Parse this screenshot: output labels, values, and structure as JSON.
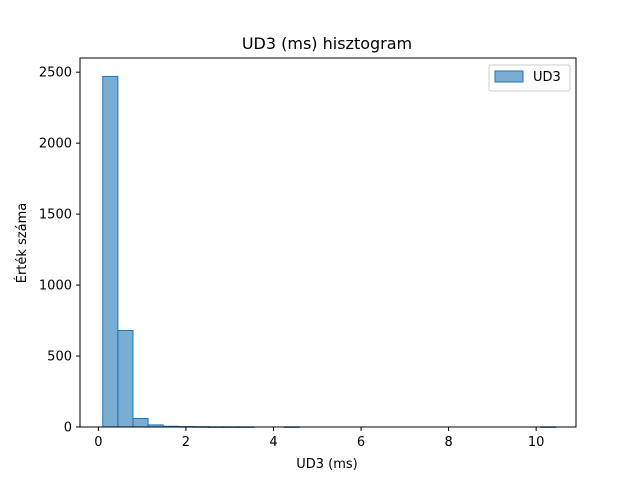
{
  "chart_data": {
    "type": "bar",
    "title": "UD3 (ms) hisztogram",
    "xlabel": "UD3 (ms)",
    "ylabel": "Érték száma",
    "xlim": [
      -0.42,
      10.91
    ],
    "ylim": [
      0,
      2600
    ],
    "xticks": [
      0,
      2,
      4,
      6,
      8,
      10
    ],
    "yticks": [
      0,
      500,
      1000,
      1500,
      2000,
      2500
    ],
    "grid": false,
    "legend": {
      "position": "top-right",
      "entries": [
        "UD3"
      ]
    },
    "series": [
      {
        "name": "UD3",
        "color": "#1f77b4",
        "bin_width": 0.345,
        "bin_edges_start": 0.1,
        "values": [
          2470,
          680,
          60,
          15,
          5,
          3,
          2,
          1,
          1,
          1,
          0,
          0,
          1,
          0,
          0,
          0,
          0,
          0,
          0,
          0,
          0,
          0,
          0,
          0,
          0,
          0,
          0,
          0,
          0,
          1
        ]
      }
    ]
  }
}
